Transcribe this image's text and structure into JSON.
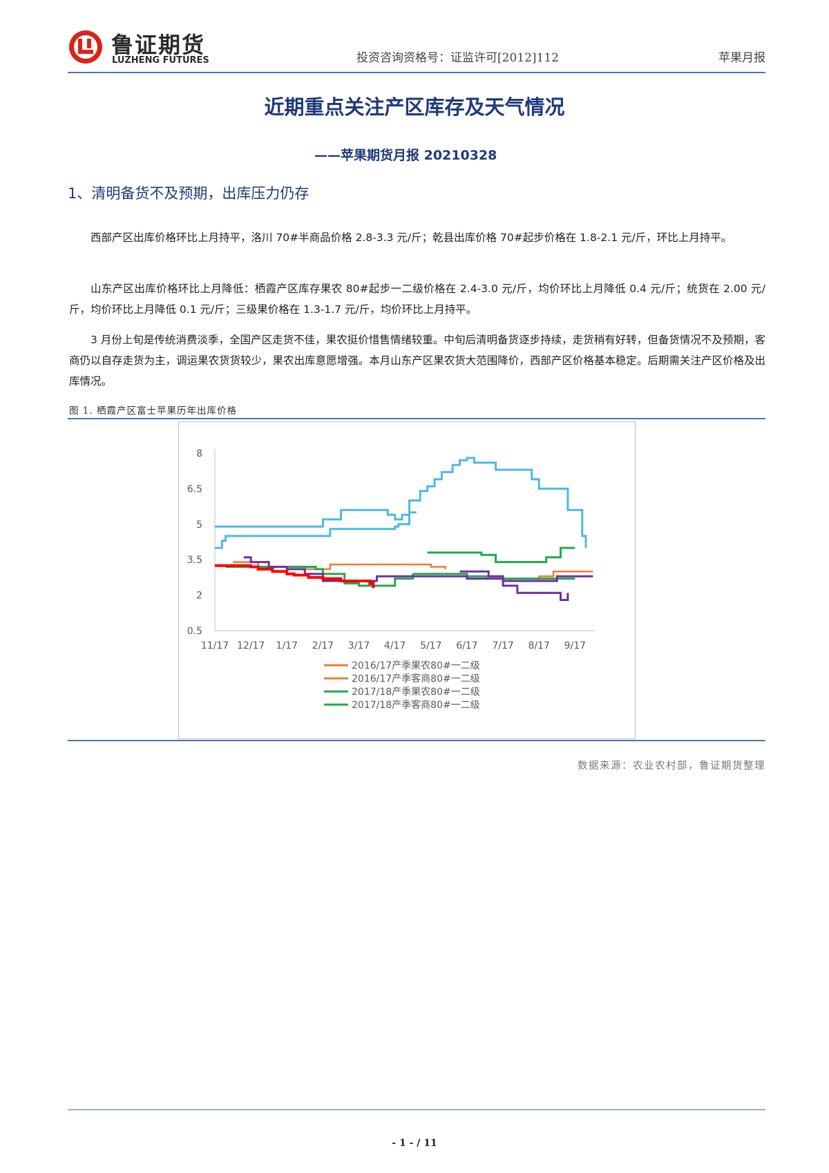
{
  "header": {
    "logo_cn": "鲁证期货",
    "logo_en": "LUZHENG FUTURES",
    "license": "投资咨询资格号：证监许可[2012]112",
    "doc_type": "苹果月报"
  },
  "title": "近期重点关注产区库存及天气情况",
  "subtitle": "——苹果期货月报 20210328",
  "section_heading": "1、清明备货不及预期，出库压力仍存",
  "paragraphs": [
    "西部产区出库价格环比上月持平，洛川 70#半商品价格 2.8-3.3 元/斤；乾县出库价格 70#起步价格在 1.8-2.1 元/斤，环比上月持平。",
    "山东产区出库价格环比上月降低：栖霞产区库存果农 80#起步一二级价格在 2.4-3.0 元/斤，均价环比上月降低 0.4 元/斤；统货在 2.00 元/斤，均价环比上月降低 0.1 元/斤；三级果价格在 1.3-1.7 元/斤，均价环比上月持平。",
    "3 月份上旬是传统消费淡季，全国产区走货不佳，果农挺价惜售情绪较重。中旬后清明备货逐步持续，走货稍有好转，但备货情况不及预期，客商仍以自存走货为主，调运果农货货较少，果农出库意愿增强。本月山东产区果农货大范围降价，西部产区价格基本稳定。后期需关注产区价格及出库情况。"
  ],
  "figure": {
    "caption": "图 1.  栖霞产区富士苹果历年出库价格",
    "source": "数据来源：农业农村部，鲁证期货整理"
  },
  "chart_data": {
    "type": "line",
    "categories": [
      "11/17",
      "12/17",
      "1/17",
      "2/17",
      "3/17",
      "4/17",
      "5/17",
      "6/17",
      "7/17",
      "8/17",
      "9/17"
    ],
    "ylim": [
      0.5,
      8
    ],
    "yticks": [
      "8",
      "6.5",
      "5",
      "3.5",
      "2",
      "0.5"
    ],
    "grid": false,
    "legend_position": "bottom",
    "legend": [
      "2016/17产季果农80#一二级",
      "2016/17产季客商80#一二级",
      "2017/18产季果农80#一二级",
      "2017/18产季客商80#一二级"
    ],
    "series": [
      {
        "color": "#4fb7e6",
        "width": 3,
        "x": [
          0,
          0.15,
          0.2,
          0.3,
          1,
          2,
          3,
          3.2,
          3.5,
          4,
          4.5,
          4.8,
          5,
          5.1,
          5.4,
          5.7,
          5.9,
          6.1,
          6.3,
          6.6,
          6.8,
          7.0,
          7.2,
          7.5,
          7.8,
          8.0,
          8.4,
          8.6,
          8.8,
          9.0,
          9.3,
          9.7,
          9.8,
          10.0,
          10.2,
          10.3
        ],
        "y": [
          4.0,
          4.0,
          4.3,
          4.5,
          4.5,
          4.5,
          4.5,
          4.8,
          4.8,
          4.8,
          4.8,
          4.8,
          4.9,
          5.0,
          6.0,
          6.4,
          6.6,
          6.9,
          7.2,
          7.5,
          7.7,
          7.8,
          7.6,
          7.6,
          7.3,
          7.3,
          7.3,
          7.3,
          6.9,
          6.5,
          6.5,
          6.5,
          5.6,
          5.6,
          4.5,
          4.0
        ]
      },
      {
        "color": "#4fb7e6",
        "width": 3,
        "x": [
          0,
          1,
          2,
          2.8,
          3.0,
          3.5,
          4.5,
          4.8,
          5.0,
          5.2,
          5.4,
          5.6
        ],
        "y": [
          4.9,
          4.9,
          4.9,
          4.9,
          5.2,
          5.6,
          5.6,
          5.4,
          5.2,
          5.4,
          5.5,
          5.5
        ]
      },
      {
        "color": "#ed7d31",
        "width": 2.5,
        "x": [
          0.5,
          0.8,
          1.0,
          1.2,
          2.0,
          3.0,
          3.2,
          3.6,
          4.0,
          4.5,
          5.0,
          5.5,
          6.0,
          6.4
        ],
        "y": [
          3.4,
          3.4,
          3.4,
          3.2,
          3.1,
          3.1,
          3.3,
          3.3,
          3.3,
          3.3,
          3.3,
          3.3,
          3.2,
          3.1
        ]
      },
      {
        "color": "#ed7d31",
        "width": 2.5,
        "x": [
          7.3,
          8.0,
          8.2,
          8.5,
          9.0,
          9.4,
          9.8,
          10.0,
          10.5
        ],
        "y": [
          2.8,
          2.7,
          2.6,
          2.6,
          2.8,
          3.0,
          3.0,
          3.0,
          3.0
        ]
      },
      {
        "color": "#22a84b",
        "width": 3,
        "x": [
          0.3,
          1.0,
          2.0,
          2.8,
          3.0,
          3.6,
          4.0,
          4.5,
          5.0,
          5.5
        ],
        "y": [
          3.2,
          3.2,
          3.2,
          3.1,
          2.9,
          2.5,
          2.4,
          2.4,
          2.7,
          2.9
        ]
      },
      {
        "color": "#22a84b",
        "width": 3,
        "x": [
          5.5,
          6.0,
          6.5,
          7.0,
          7.5,
          8.0,
          8.5,
          9.0,
          9.5,
          10.0
        ],
        "y": [
          2.9,
          2.9,
          2.9,
          2.8,
          2.8,
          2.7,
          2.7,
          2.7,
          2.7,
          2.7
        ]
      },
      {
        "color": "#22a84b",
        "width": 3,
        "x": [
          5.9,
          6.5,
          7.0,
          7.4,
          7.8,
          8.2,
          8.8,
          9.2,
          9.6,
          10.0
        ],
        "y": [
          3.8,
          3.8,
          3.8,
          3.7,
          3.4,
          3.4,
          3.4,
          3.6,
          4.0,
          4.0
        ]
      },
      {
        "color": "#7030a0",
        "width": 3,
        "x": [
          0.8,
          1.0,
          1.5,
          2.0,
          2.5,
          3.0,
          3.5,
          4.0,
          4.5,
          5.0,
          5.5,
          6.0,
          6.5,
          7.0,
          7.5,
          8.0,
          8.5,
          9.0,
          9.5,
          9.8,
          10.0,
          10.5
        ],
        "y": [
          3.6,
          3.4,
          3.2,
          3.1,
          2.9,
          2.6,
          2.6,
          2.6,
          2.8,
          2.8,
          2.8,
          2.8,
          2.8,
          2.7,
          2.7,
          2.6,
          2.6,
          2.6,
          2.8,
          2.8,
          2.8,
          2.8
        ]
      },
      {
        "color": "#7030a0",
        "width": 3,
        "x": [
          6.8,
          7.2,
          7.6,
          8.0,
          8.4,
          9.0,
          9.4,
          9.6,
          9.8
        ],
        "y": [
          3.0,
          3.0,
          2.8,
          2.4,
          2.1,
          2.1,
          2.1,
          1.8,
          2.1
        ]
      },
      {
        "color": "#ff0000",
        "width": 4,
        "x": [
          0,
          0.5,
          1.0,
          1.2,
          1.6,
          2.0,
          2.2,
          2.6,
          3.0,
          3.2,
          3.5,
          4.0,
          4.3,
          4.4
        ],
        "y": [
          3.25,
          3.25,
          3.2,
          3.1,
          3.0,
          2.9,
          2.85,
          2.75,
          2.7,
          2.7,
          2.6,
          2.6,
          2.5,
          2.3
        ]
      }
    ]
  },
  "footer": {
    "page": "- 1 -  / 11"
  }
}
